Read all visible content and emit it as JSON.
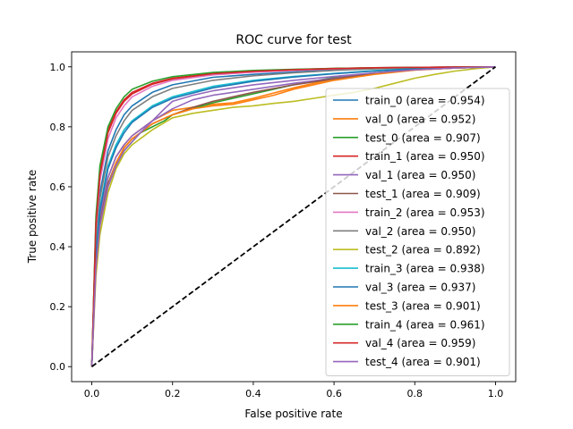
{
  "chart_data": {
    "type": "line",
    "title": "ROC curve for test",
    "xlabel": "False positive rate",
    "ylabel": "True positive rate",
    "xlim": [
      -0.05,
      1.05
    ],
    "ylim": [
      -0.05,
      1.05
    ],
    "xticks": [
      0.0,
      0.2,
      0.4,
      0.6,
      0.8,
      1.0
    ],
    "yticks": [
      0.0,
      0.2,
      0.4,
      0.6,
      0.8,
      1.0
    ],
    "xtick_labels": [
      "0.0",
      "0.2",
      "0.4",
      "0.6",
      "0.8",
      "1.0"
    ],
    "ytick_labels": [
      "0.0",
      "0.2",
      "0.4",
      "0.6",
      "0.8",
      "1.0"
    ],
    "grid": false,
    "legend_position": "lower-right",
    "diagonal": {
      "x": [
        0,
        1
      ],
      "y": [
        0,
        1
      ],
      "color": "#000000",
      "style": "dashed"
    },
    "series": [
      {
        "name": "train_0 (area = 0.954)",
        "color": "#1f77b4",
        "x": [
          0,
          0.01,
          0.02,
          0.04,
          0.06,
          0.08,
          0.1,
          0.15,
          0.2,
          0.3,
          0.4,
          0.5,
          0.6,
          0.7,
          0.8,
          0.9,
          1.0
        ],
        "y": [
          0,
          0.42,
          0.58,
          0.72,
          0.79,
          0.84,
          0.87,
          0.915,
          0.94,
          0.965,
          0.975,
          0.983,
          0.99,
          0.995,
          0.998,
          0.999,
          1.0
        ]
      },
      {
        "name": "val_0 (area = 0.952)",
        "color": "#ff7f0e",
        "x": [
          0,
          0.01,
          0.02,
          0.04,
          0.06,
          0.08,
          0.1,
          0.15,
          0.2,
          0.25,
          0.3,
          0.35,
          0.4,
          0.5,
          0.6,
          0.7,
          0.8,
          0.9,
          1.0
        ],
        "y": [
          0,
          0.35,
          0.5,
          0.63,
          0.7,
          0.74,
          0.77,
          0.82,
          0.855,
          0.865,
          0.875,
          0.88,
          0.895,
          0.93,
          0.96,
          0.98,
          0.99,
          0.996,
          1.0
        ]
      },
      {
        "name": "test_0 (area = 0.907)",
        "color": "#2ca02c",
        "x": [
          0,
          0.01,
          0.02,
          0.04,
          0.06,
          0.08,
          0.1,
          0.12,
          0.15,
          0.18,
          0.2,
          0.25,
          0.3,
          0.35,
          0.4,
          0.5,
          0.6,
          0.7,
          0.8,
          0.9,
          1.0
        ],
        "y": [
          0,
          0.33,
          0.47,
          0.6,
          0.67,
          0.72,
          0.75,
          0.78,
          0.8,
          0.82,
          0.84,
          0.86,
          0.88,
          0.895,
          0.91,
          0.94,
          0.965,
          0.98,
          0.99,
          0.996,
          1.0
        ]
      },
      {
        "name": "train_1 (area = 0.950)",
        "color": "#d62728",
        "x": [
          0,
          0.01,
          0.02,
          0.04,
          0.06,
          0.08,
          0.1,
          0.15,
          0.2,
          0.3,
          0.4,
          0.5,
          0.6,
          0.7,
          0.8,
          0.9,
          1.0
        ],
        "y": [
          0,
          0.48,
          0.65,
          0.79,
          0.85,
          0.89,
          0.915,
          0.945,
          0.962,
          0.978,
          0.986,
          0.991,
          0.995,
          0.997,
          0.998,
          0.999,
          1.0
        ]
      },
      {
        "name": "val_1 (area = 0.950)",
        "color": "#9467bd",
        "x": [
          0,
          0.01,
          0.02,
          0.04,
          0.06,
          0.08,
          0.1,
          0.12,
          0.15,
          0.2,
          0.25,
          0.3,
          0.4,
          0.5,
          0.6,
          0.7,
          0.8,
          0.9,
          1.0
        ],
        "y": [
          0,
          0.35,
          0.5,
          0.63,
          0.7,
          0.74,
          0.77,
          0.79,
          0.82,
          0.86,
          0.89,
          0.905,
          0.925,
          0.945,
          0.962,
          0.978,
          0.99,
          0.996,
          1.0
        ]
      },
      {
        "name": "test_1 (area = 0.909)",
        "color": "#8c564b",
        "x": [
          0,
          0.01,
          0.02,
          0.04,
          0.06,
          0.08,
          0.1,
          0.12,
          0.15,
          0.2,
          0.25,
          0.3,
          0.35,
          0.4,
          0.5,
          0.6,
          0.7,
          0.8,
          0.9,
          1.0
        ],
        "y": [
          0,
          0.34,
          0.48,
          0.61,
          0.68,
          0.73,
          0.76,
          0.78,
          0.81,
          0.84,
          0.865,
          0.885,
          0.9,
          0.915,
          0.94,
          0.96,
          0.978,
          0.99,
          0.996,
          1.0
        ]
      },
      {
        "name": "train_2 (area = 0.953)",
        "color": "#e377c2",
        "x": [
          0,
          0.01,
          0.02,
          0.04,
          0.06,
          0.08,
          0.1,
          0.15,
          0.2,
          0.3,
          0.4,
          0.5,
          0.6,
          0.7,
          0.8,
          0.9,
          1.0
        ],
        "y": [
          0,
          0.45,
          0.62,
          0.76,
          0.83,
          0.87,
          0.9,
          0.935,
          0.955,
          0.973,
          0.982,
          0.988,
          0.993,
          0.996,
          0.998,
          0.999,
          1.0
        ]
      },
      {
        "name": "val_2 (area = 0.950)",
        "color": "#7f7f7f",
        "x": [
          0,
          0.01,
          0.02,
          0.04,
          0.06,
          0.08,
          0.1,
          0.15,
          0.2,
          0.3,
          0.4,
          0.5,
          0.6,
          0.7,
          0.8,
          0.9,
          1.0
        ],
        "y": [
          0,
          0.4,
          0.56,
          0.7,
          0.77,
          0.82,
          0.855,
          0.9,
          0.928,
          0.955,
          0.97,
          0.98,
          0.988,
          0.993,
          0.997,
          0.999,
          1.0
        ]
      },
      {
        "name": "test_2 (area = 0.892)",
        "color": "#bcbd22",
        "x": [
          0,
          0.01,
          0.02,
          0.04,
          0.06,
          0.08,
          0.1,
          0.15,
          0.2,
          0.25,
          0.3,
          0.35,
          0.4,
          0.45,
          0.5,
          0.55,
          0.6,
          0.65,
          0.7,
          0.75,
          0.8,
          0.85,
          0.9,
          0.95,
          1.0
        ],
        "y": [
          0,
          0.3,
          0.44,
          0.58,
          0.66,
          0.71,
          0.74,
          0.79,
          0.83,
          0.845,
          0.855,
          0.865,
          0.87,
          0.878,
          0.885,
          0.895,
          0.905,
          0.915,
          0.928,
          0.945,
          0.962,
          0.975,
          0.986,
          0.994,
          1.0
        ]
      },
      {
        "name": "train_3 (area = 0.938)",
        "color": "#17becf",
        "x": [
          0,
          0.01,
          0.02,
          0.04,
          0.06,
          0.08,
          0.1,
          0.15,
          0.2,
          0.3,
          0.4,
          0.5,
          0.6,
          0.7,
          0.8,
          0.9,
          1.0
        ],
        "y": [
          0,
          0.38,
          0.53,
          0.67,
          0.74,
          0.79,
          0.82,
          0.87,
          0.9,
          0.935,
          0.955,
          0.968,
          0.978,
          0.987,
          0.994,
          0.998,
          1.0
        ]
      },
      {
        "name": "val_3 (area = 0.937)",
        "color": "#1f77b4",
        "x": [
          0,
          0.01,
          0.02,
          0.04,
          0.06,
          0.08,
          0.1,
          0.15,
          0.2,
          0.3,
          0.4,
          0.5,
          0.6,
          0.7,
          0.8,
          0.9,
          1.0
        ],
        "y": [
          0,
          0.37,
          0.52,
          0.66,
          0.73,
          0.78,
          0.815,
          0.865,
          0.895,
          0.93,
          0.952,
          0.966,
          0.977,
          0.986,
          0.993,
          0.998,
          1.0
        ]
      },
      {
        "name": "test_3 (area = 0.901)",
        "color": "#ff7f0e",
        "x": [
          0,
          0.01,
          0.02,
          0.04,
          0.06,
          0.08,
          0.1,
          0.12,
          0.15,
          0.2,
          0.25,
          0.3,
          0.35,
          0.4,
          0.45,
          0.5,
          0.6,
          0.7,
          0.8,
          0.9,
          1.0
        ],
        "y": [
          0,
          0.33,
          0.47,
          0.6,
          0.68,
          0.73,
          0.76,
          0.78,
          0.81,
          0.84,
          0.86,
          0.87,
          0.875,
          0.89,
          0.905,
          0.925,
          0.955,
          0.975,
          0.989,
          0.996,
          1.0
        ]
      },
      {
        "name": "train_4 (area = 0.961)",
        "color": "#2ca02c",
        "x": [
          0,
          0.01,
          0.02,
          0.04,
          0.06,
          0.08,
          0.1,
          0.15,
          0.2,
          0.3,
          0.4,
          0.5,
          0.6,
          0.7,
          0.8,
          0.9,
          1.0
        ],
        "y": [
          0,
          0.5,
          0.67,
          0.8,
          0.86,
          0.9,
          0.925,
          0.952,
          0.967,
          0.981,
          0.988,
          0.992,
          0.995,
          0.997,
          0.998,
          0.999,
          1.0
        ]
      },
      {
        "name": "val_4 (area = 0.959)",
        "color": "#d62728",
        "x": [
          0,
          0.01,
          0.02,
          0.04,
          0.06,
          0.08,
          0.1,
          0.15,
          0.2,
          0.3,
          0.4,
          0.5,
          0.6,
          0.7,
          0.8,
          0.9,
          1.0
        ],
        "y": [
          0,
          0.47,
          0.64,
          0.78,
          0.845,
          0.885,
          0.91,
          0.942,
          0.96,
          0.977,
          0.985,
          0.99,
          0.994,
          0.997,
          0.998,
          0.999,
          1.0
        ]
      },
      {
        "name": "test_4 (area = 0.901)",
        "color": "#9467bd",
        "x": [
          0,
          0.01,
          0.02,
          0.04,
          0.06,
          0.08,
          0.1,
          0.12,
          0.15,
          0.18,
          0.2,
          0.25,
          0.3,
          0.4,
          0.5,
          0.6,
          0.7,
          0.8,
          0.9,
          1.0
        ],
        "y": [
          0,
          0.33,
          0.47,
          0.6,
          0.67,
          0.72,
          0.75,
          0.78,
          0.82,
          0.86,
          0.885,
          0.905,
          0.92,
          0.94,
          0.955,
          0.968,
          0.98,
          0.99,
          0.996,
          1.0
        ]
      }
    ]
  }
}
